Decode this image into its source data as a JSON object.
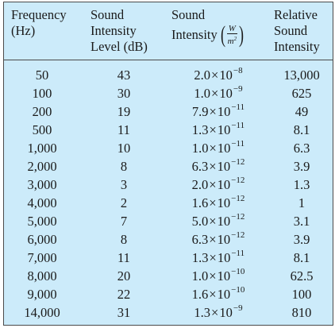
{
  "headers": {
    "frequency": [
      "Frequency",
      "(Hz)"
    ],
    "level": [
      "Sound",
      "Intensity",
      "Level (dB)"
    ],
    "intensity": {
      "line1": "Sound",
      "line2": "Intensity",
      "unit_num": "W",
      "unit_den": "m",
      "unit_den_exp": "2"
    },
    "relative": [
      "Relative",
      "Sound",
      "Intensity"
    ]
  },
  "rows": [
    {
      "freq": "50",
      "db": "43",
      "mant": "2.0",
      "exp": "−8",
      "rel": "13,000"
    },
    {
      "freq": "100",
      "db": "30",
      "mant": "1.0",
      "exp": "−9",
      "rel": "625"
    },
    {
      "freq": "200",
      "db": "19",
      "mant": "7.9",
      "exp": "−11",
      "rel": "49"
    },
    {
      "freq": "500",
      "db": "11",
      "mant": "1.3",
      "exp": "−11",
      "rel": "8.1"
    },
    {
      "freq": "1,000",
      "db": "10",
      "mant": "1.0",
      "exp": "−11",
      "rel": "6.3"
    },
    {
      "freq": "2,000",
      "db": "8",
      "mant": "6.3",
      "exp": "−12",
      "rel": "3.9"
    },
    {
      "freq": "3,000",
      "db": "3",
      "mant": "2.0",
      "exp": "−12",
      "rel": "1.3"
    },
    {
      "freq": "4,000",
      "db": "2",
      "mant": "1.6",
      "exp": "−12",
      "rel": "1"
    },
    {
      "freq": "5,000",
      "db": "7",
      "mant": "5.0",
      "exp": "−12",
      "rel": "3.1"
    },
    {
      "freq": "6,000",
      "db": "8",
      "mant": "6.3",
      "exp": "−12",
      "rel": "3.9"
    },
    {
      "freq": "7,000",
      "db": "11",
      "mant": "1.3",
      "exp": "−11",
      "rel": "8.1"
    },
    {
      "freq": "8,000",
      "db": "20",
      "mant": "1.0",
      "exp": "−10",
      "rel": "62.5"
    },
    {
      "freq": "9,000",
      "db": "22",
      "mant": "1.6",
      "exp": "−10",
      "rel": "100"
    },
    {
      "freq": "14,000",
      "db": "31",
      "mant": "1.3",
      "exp": "−9",
      "rel": "810"
    }
  ],
  "symbols": {
    "times": "×",
    "ten": "10"
  },
  "colors": {
    "background": "#ccebfa",
    "border": "#4a4a4a",
    "text": "#1a1a1a"
  }
}
